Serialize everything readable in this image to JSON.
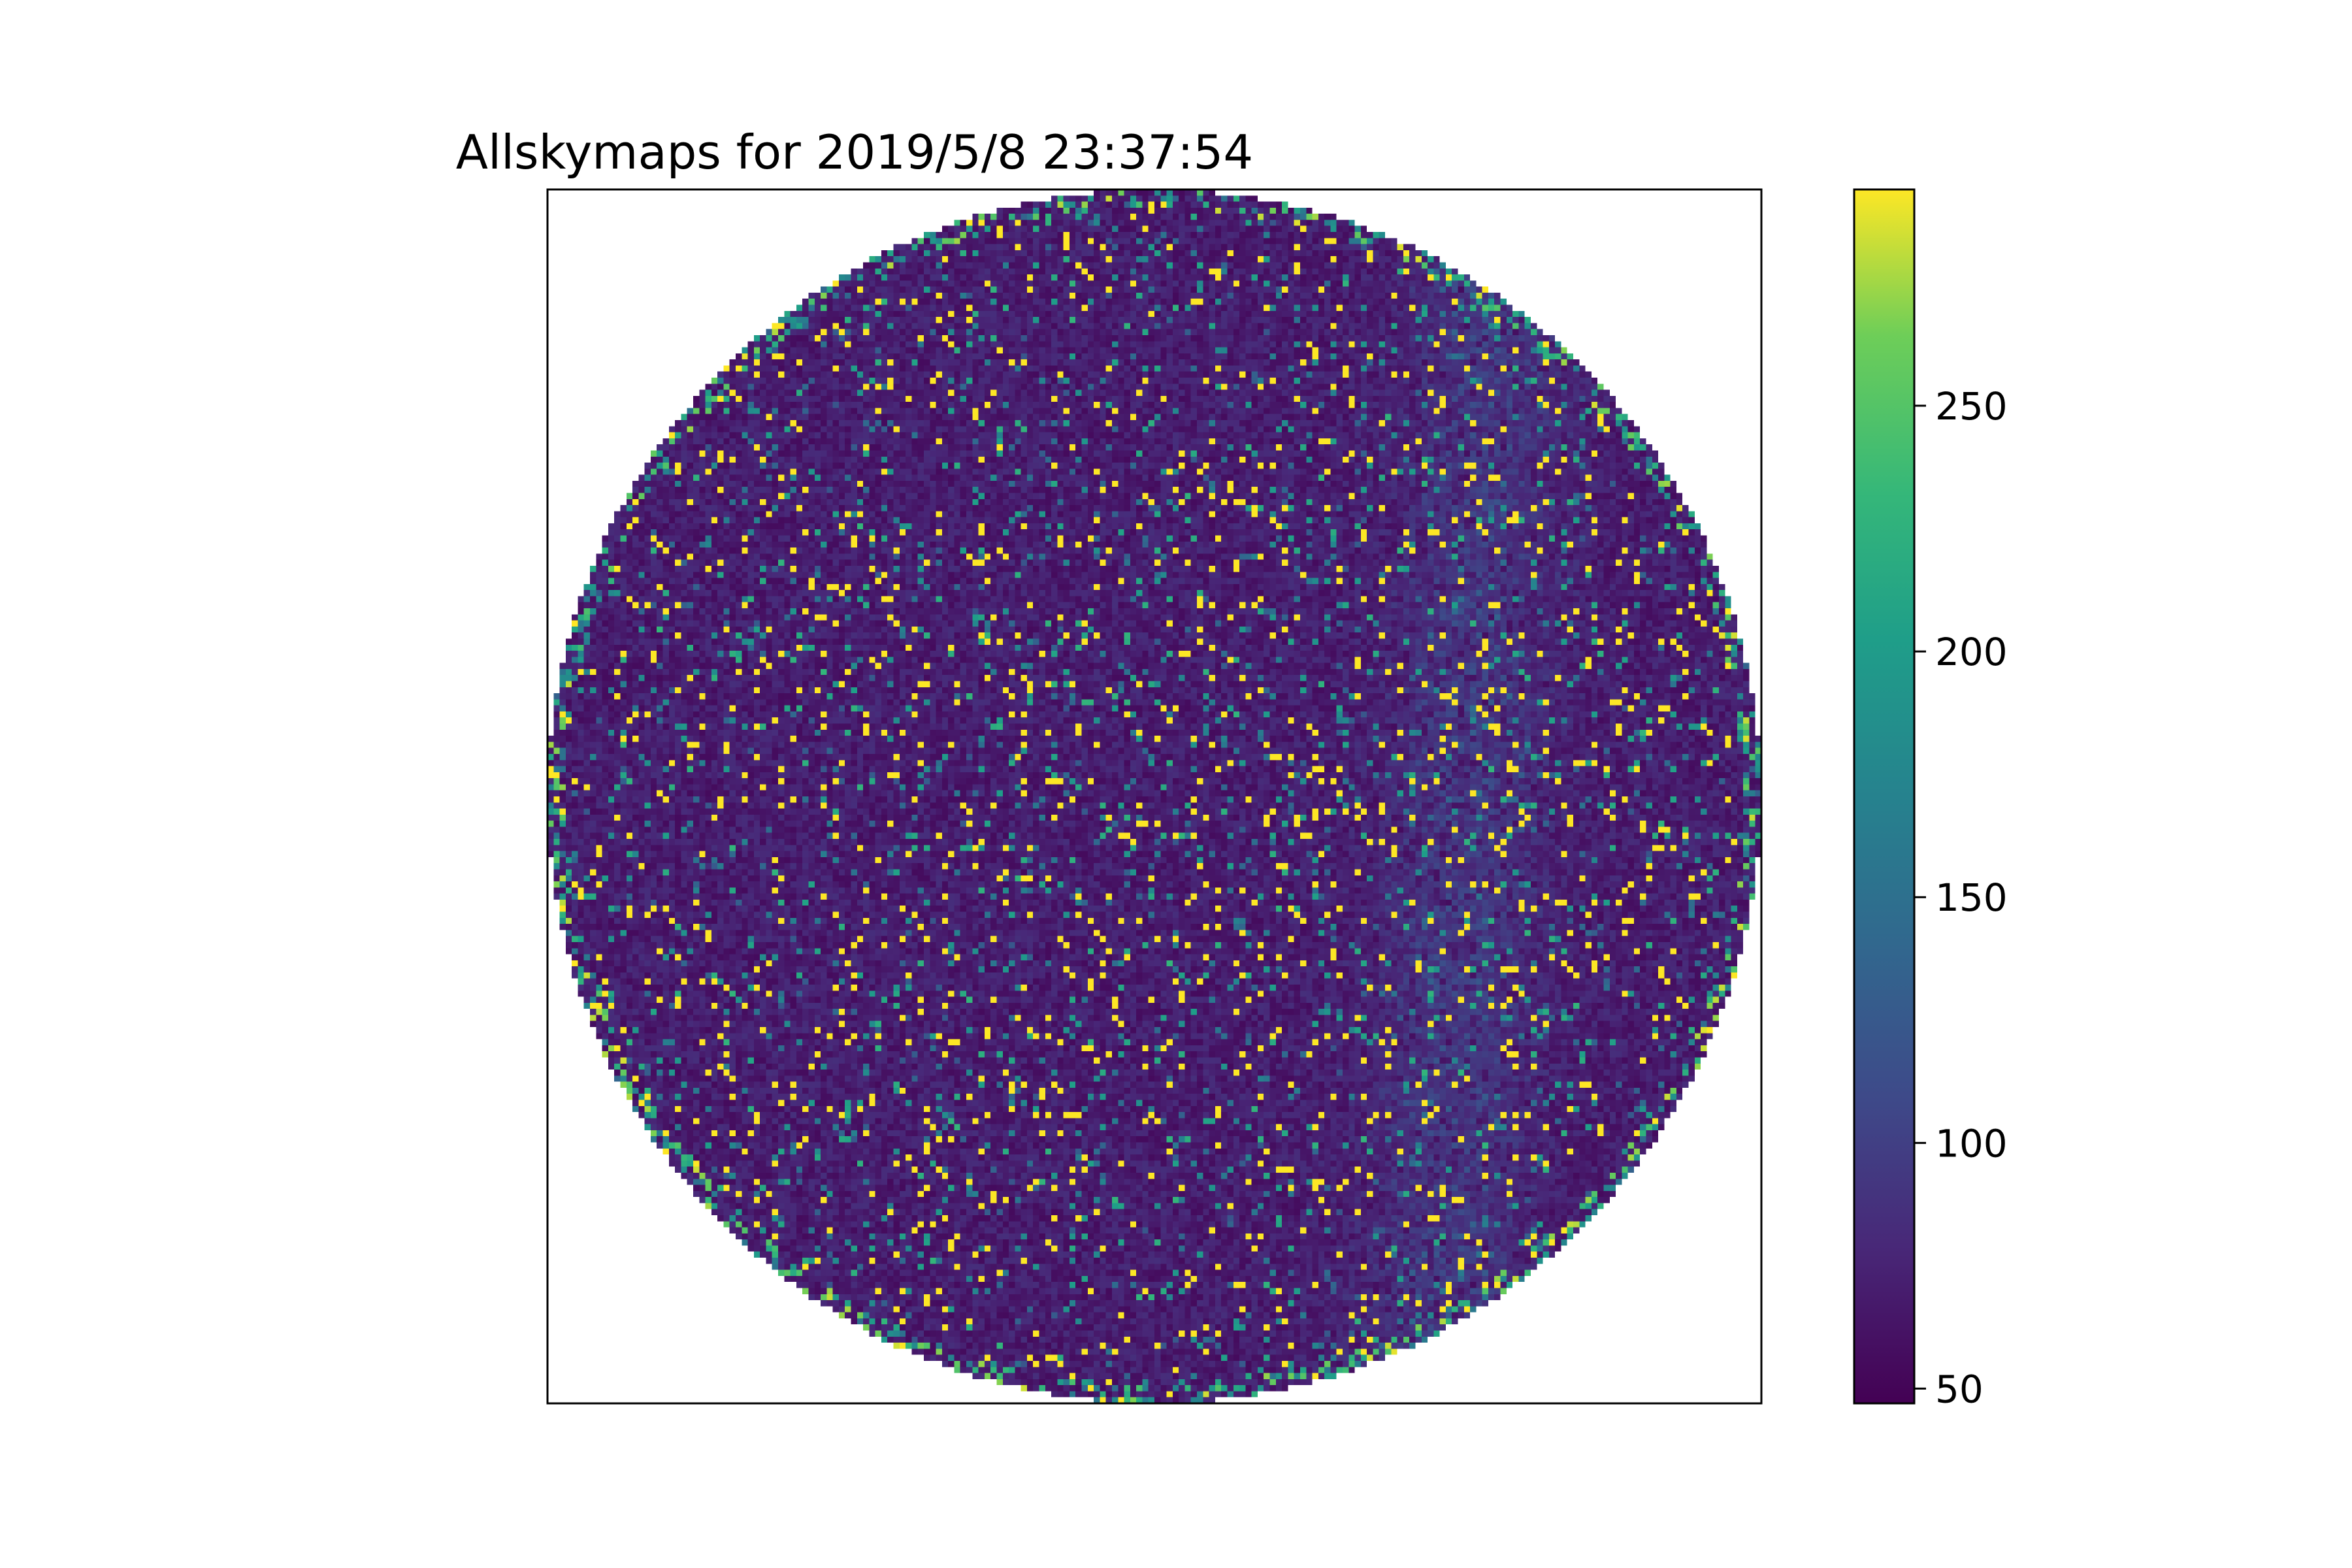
{
  "chart_data": {
    "type": "heatmap",
    "title": "Allskymaps for 2019/5/8 23:37:54",
    "xlabel": "",
    "ylabel": "",
    "x_ticks": [],
    "y_ticks": [],
    "grid": false,
    "colormap": "viridis",
    "colorbar": {
      "range": [
        47,
        294
      ],
      "ticks": [
        50,
        100,
        150,
        200,
        250
      ],
      "tick_labels": [
        "50",
        "100",
        "150",
        "200",
        "250"
      ]
    },
    "map": {
      "shape": "circle",
      "grid_cells": 200,
      "background_level": 70,
      "bright_pixel_level": 294,
      "outside_value": "masked"
    }
  }
}
